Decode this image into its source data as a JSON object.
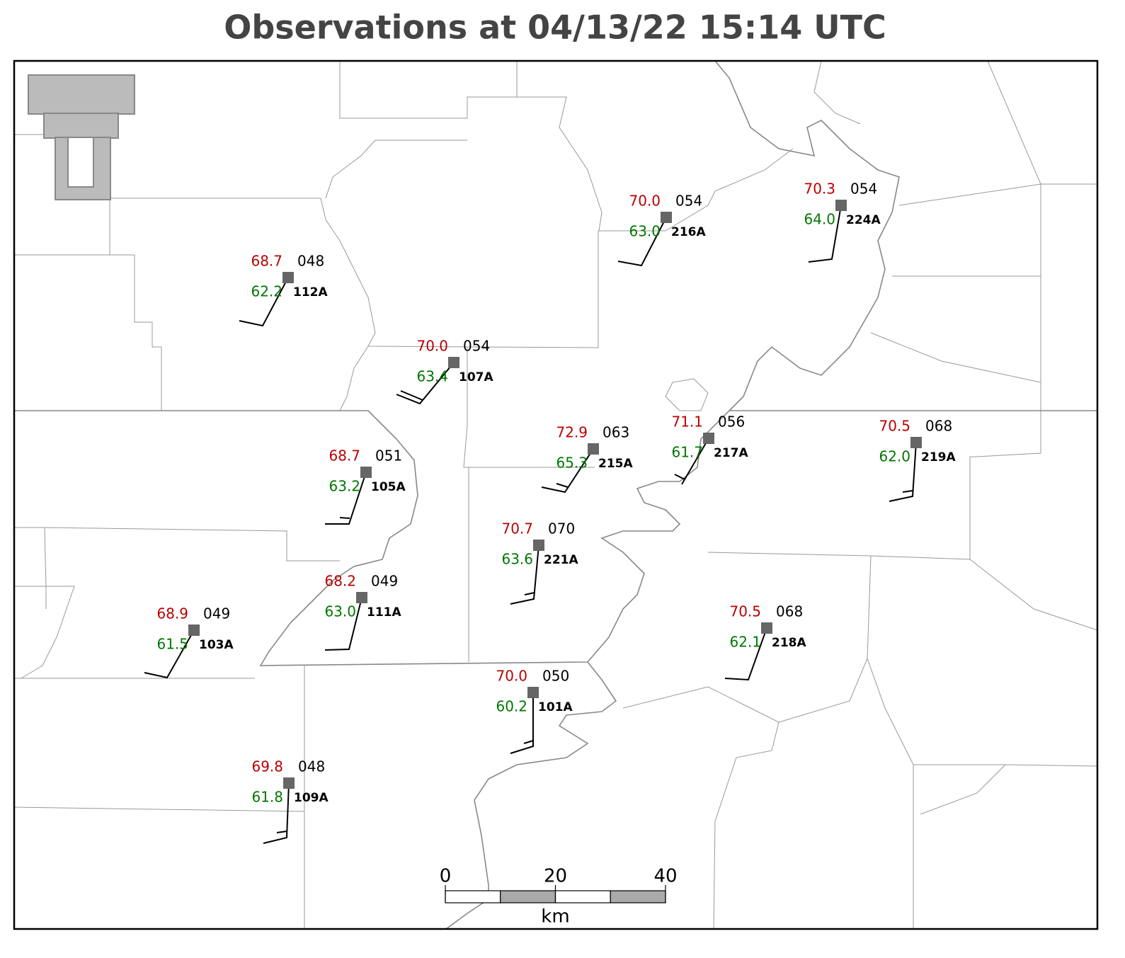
{
  "title": "Observations at 04/13/22 15:14 UTC",
  "stations": [
    {
      "temperature": "68.7",
      "dewpoint": "62.2",
      "pressure": "048",
      "id": "112A"
    },
    {
      "temperature": "70.0",
      "dewpoint": "63.4",
      "pressure": "054",
      "id": "107A"
    },
    {
      "temperature": "70.0",
      "dewpoint": "63.0",
      "pressure": "054",
      "id": "216A"
    },
    {
      "temperature": "70.3",
      "dewpoint": "64.0",
      "pressure": "054",
      "id": "224A"
    },
    {
      "temperature": "68.7",
      "dewpoint": "63.2",
      "pressure": "051",
      "id": "105A"
    },
    {
      "temperature": "72.9",
      "dewpoint": "65.3",
      "pressure": "063",
      "id": "215A"
    },
    {
      "temperature": "71.1",
      "dewpoint": "61.7",
      "pressure": "056",
      "id": "217A"
    },
    {
      "temperature": "70.5",
      "dewpoint": "62.0",
      "pressure": "068",
      "id": "219A"
    },
    {
      "temperature": "70.7",
      "dewpoint": "63.6",
      "pressure": "070",
      "id": "221A"
    },
    {
      "temperature": "68.2",
      "dewpoint": "63.0",
      "pressure": "049",
      "id": "111A"
    },
    {
      "temperature": "68.9",
      "dewpoint": "61.5",
      "pressure": "049",
      "id": "103A"
    },
    {
      "temperature": "70.5",
      "dewpoint": "62.1",
      "pressure": "068",
      "id": "218A"
    },
    {
      "temperature": "70.0",
      "dewpoint": "60.2",
      "pressure": "050",
      "id": "101A"
    },
    {
      "temperature": "69.8",
      "dewpoint": "61.8",
      "pressure": "048",
      "id": "109A"
    }
  ],
  "scale_bar": {
    "ticks": [
      0,
      20,
      40
    ],
    "unit": "km"
  }
}
